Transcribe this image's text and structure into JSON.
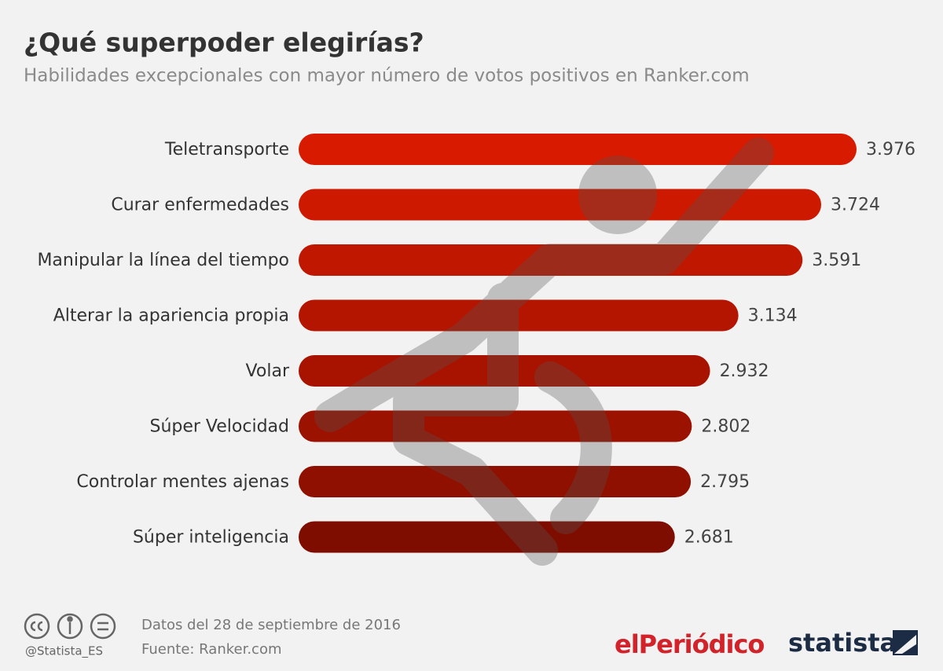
{
  "chart_data": {
    "type": "bar",
    "orientation": "horizontal",
    "title": "¿Qué superpoder elegirías?",
    "subtitle": "Habilidades excepcionales con mayor número de votos positivos en Ranker.com",
    "categories": [
      "Teletransporte",
      "Curar enfermedades",
      "Manipular la línea del tiempo",
      "Alterar la apariencia propia",
      "Volar",
      "Súper Velocidad",
      "Controlar mentes ajenas",
      "Súper inteligencia"
    ],
    "values": [
      3976,
      3724,
      3591,
      3134,
      2932,
      2802,
      2795,
      2681
    ],
    "value_labels": [
      "3.976",
      "3.724",
      "3.591",
      "3.134",
      "2.932",
      "2.802",
      "2.795",
      "2.681"
    ],
    "colors": [
      "#d81a00",
      "#cc1900",
      "#c01700",
      "#b41500",
      "#a81300",
      "#9c1200",
      "#901000",
      "#7e0d00"
    ]
  },
  "footer": {
    "handle": "@Statista_ES",
    "date": "Datos del 28 de septiembre de 2016",
    "source": "Fuente: Ranker.com",
    "brand": "elPeriódico",
    "logo": "statista"
  }
}
